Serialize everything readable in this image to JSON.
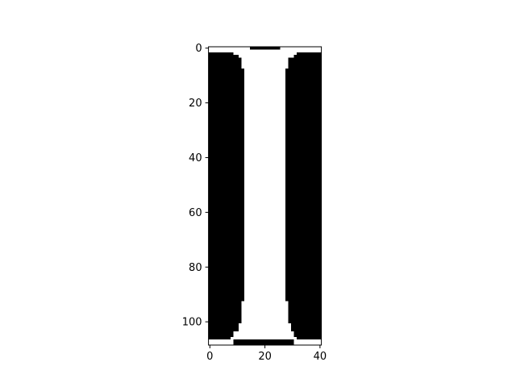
{
  "chart_data": {
    "type": "heatmap",
    "title": "",
    "xlabel": "",
    "ylabel": "",
    "image_shape": [
      109,
      41
    ],
    "colormap": {
      "0": "#000000",
      "1": "#ffffff"
    },
    "x_ticks": [
      0,
      20,
      40
    ],
    "y_ticks": [
      0,
      20,
      40,
      60,
      80,
      100
    ],
    "xlim": [
      -0.5,
      40.5
    ],
    "ylim": [
      108.5,
      -0.5
    ],
    "grid": false,
    "legend": "none",
    "description_regions": [
      {
        "value": 0,
        "row_start": 0,
        "row_end": 0,
        "col_start": 15,
        "col_end": 25
      },
      {
        "value": 0,
        "row_start": 2,
        "row_end": 3,
        "col_start": 0,
        "col_end": 8
      },
      {
        "value": 0,
        "row_start": 2,
        "row_end": 3,
        "col_start": 32,
        "col_end": 40
      },
      {
        "value": 0,
        "row_start": 3,
        "row_end": 4,
        "col_start": 0,
        "col_end": 10
      },
      {
        "value": 0,
        "row_start": 3,
        "row_end": 4,
        "col_start": 31,
        "col_end": 40
      },
      {
        "value": 0,
        "row_start": 4,
        "row_end": 8,
        "col_start": 0,
        "col_end": 11
      },
      {
        "value": 0,
        "row_start": 4,
        "row_end": 8,
        "col_start": 29,
        "col_end": 40
      },
      {
        "value": 0,
        "row_start": 8,
        "row_end": 92,
        "col_start": 0,
        "col_end": 12
      },
      {
        "value": 0,
        "row_start": 8,
        "row_end": 92,
        "col_start": 28,
        "col_end": 40
      },
      {
        "value": 0,
        "row_start": 92,
        "row_end": 100,
        "col_start": 0,
        "col_end": 11
      },
      {
        "value": 0,
        "row_start": 92,
        "row_end": 100,
        "col_start": 29,
        "col_end": 40
      },
      {
        "value": 0,
        "row_start": 100,
        "row_end": 103,
        "col_start": 0,
        "col_end": 10
      },
      {
        "value": 0,
        "row_start": 100,
        "row_end": 103,
        "col_start": 30,
        "col_end": 40
      },
      {
        "value": 0,
        "row_start": 103,
        "row_end": 105,
        "col_start": 0,
        "col_end": 8
      },
      {
        "value": 0,
        "row_start": 103,
        "row_end": 105,
        "col_start": 31,
        "col_end": 40
      },
      {
        "value": 0,
        "row_start": 105,
        "row_end": 106,
        "col_start": 0,
        "col_end": 7
      },
      {
        "value": 0,
        "row_start": 105,
        "row_end": 106,
        "col_start": 32,
        "col_end": 40
      },
      {
        "value": 0,
        "row_start": 107,
        "row_end": 108,
        "col_start": 9,
        "col_end": 30
      }
    ]
  }
}
